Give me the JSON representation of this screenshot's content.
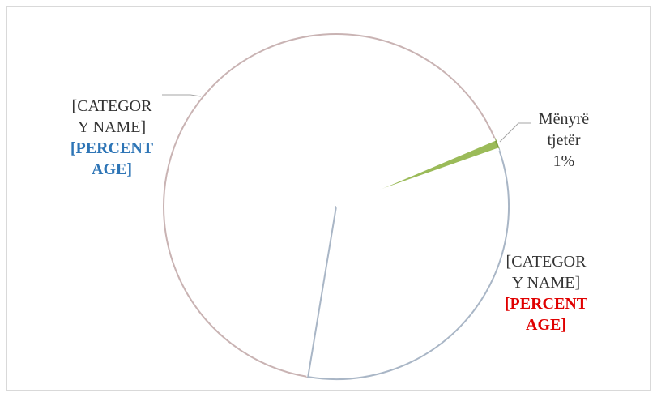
{
  "chart_data": {
    "type": "pie",
    "categories": [
      "[CATEGORY NAME]",
      "Mënyrë tjetër",
      "[CATEGORY NAME]"
    ],
    "values": [
      66,
      1,
      33
    ],
    "value_labels": [
      "[PERCENTAGE]",
      "1%",
      "[PERCENTAGE]"
    ],
    "colors": [
      "#ffffff",
      "#9bbb59",
      "#ffffff"
    ],
    "edge_colors": [
      "#c9b3b3",
      "#7f9f3f",
      "#a9b6c6"
    ],
    "label_colors": [
      "#2e75b6",
      "#333333",
      "#e00000"
    ]
  }
}
